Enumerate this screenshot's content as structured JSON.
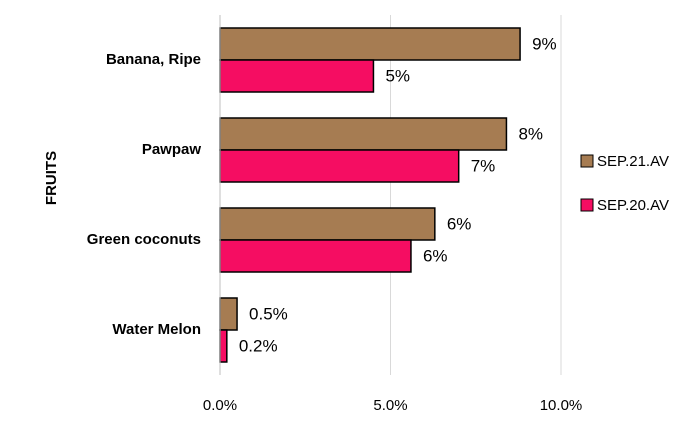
{
  "chart_data": {
    "type": "bar",
    "orientation": "horizontal",
    "title": "",
    "xlabel": "",
    "ylabel": "FRUITS",
    "xlim": [
      0,
      10
    ],
    "x_ticks": [
      "0.0%",
      "5.0%",
      "10.0%"
    ],
    "x_tick_values": [
      0,
      5,
      10
    ],
    "grid": "vertical",
    "legend_position": "right",
    "categories": [
      "Banana, Ripe",
      "Pawpaw",
      "Green coconuts",
      "Water Melon"
    ],
    "series": [
      {
        "name": "SEP.21.AV",
        "color": "#a67c52",
        "values": [
          8.8,
          8.4,
          6.3,
          0.5
        ],
        "labels": [
          "9%",
          "8%",
          "6%",
          "0.5%"
        ]
      },
      {
        "name": "SEP.20.AV",
        "color": "#f50d62",
        "values": [
          4.5,
          7.0,
          5.6,
          0.2
        ],
        "labels": [
          "5%",
          "7%",
          "6%",
          "0.2%"
        ]
      }
    ]
  }
}
